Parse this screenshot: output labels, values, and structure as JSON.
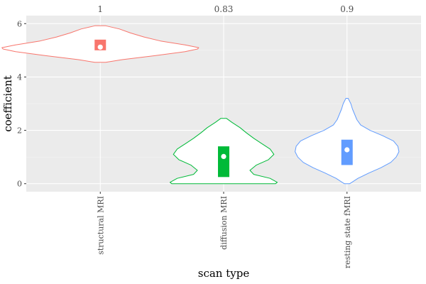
{
  "chart_data": {
    "type": "violin",
    "xlabel": "scan type",
    "ylabel": "coefficient",
    "ylim": [
      -0.3,
      6.3
    ],
    "yticks": [
      0,
      2,
      4,
      6
    ],
    "grid": true,
    "categories": [
      "structural MRI",
      "diffusion MRI",
      "resting state fMRI"
    ],
    "annotations": [
      "1",
      "0.83",
      "0.9"
    ],
    "groups": [
      {
        "name": "structural MRI",
        "color": "#F8766D",
        "box": {
          "q1": 5.0,
          "q3": 5.4,
          "median": 5.12
        },
        "violin": {
          "y": [
            4.55,
            4.65,
            4.8,
            4.95,
            5.05,
            5.1,
            5.2,
            5.35,
            5.5,
            5.65,
            5.8,
            5.92
          ],
          "half_width": [
            0.1,
            0.4,
            1.0,
            1.55,
            1.78,
            1.8,
            1.55,
            1.1,
            0.8,
            0.55,
            0.35,
            0.1
          ]
        }
      },
      {
        "name": "diffusion MRI",
        "color": "#00BA38",
        "box": {
          "q1": 0.25,
          "q3": 1.4,
          "median": 1.02
        },
        "violin": {
          "y": [
            0.0,
            0.05,
            0.2,
            0.35,
            0.5,
            0.7,
            0.9,
            1.1,
            1.3,
            1.5,
            1.7,
            1.9,
            2.1,
            2.3,
            2.45
          ],
          "half_width": [
            0.95,
            0.98,
            0.85,
            0.55,
            0.48,
            0.6,
            0.82,
            0.92,
            0.85,
            0.7,
            0.55,
            0.42,
            0.3,
            0.15,
            0.05
          ]
        }
      },
      {
        "name": "resting state fMRI",
        "color": "#619CFF",
        "box": {
          "q1": 0.7,
          "q3": 1.65,
          "median": 1.27
        },
        "violin": {
          "y": [
            0.0,
            0.2,
            0.4,
            0.6,
            0.8,
            1.0,
            1.2,
            1.4,
            1.6,
            1.8,
            2.0,
            2.2,
            2.4,
            2.6,
            2.8,
            3.0,
            3.2
          ],
          "half_width": [
            0.05,
            0.2,
            0.4,
            0.62,
            0.8,
            0.9,
            0.95,
            0.93,
            0.85,
            0.65,
            0.42,
            0.25,
            0.18,
            0.14,
            0.1,
            0.07,
            0.02
          ]
        }
      }
    ]
  }
}
